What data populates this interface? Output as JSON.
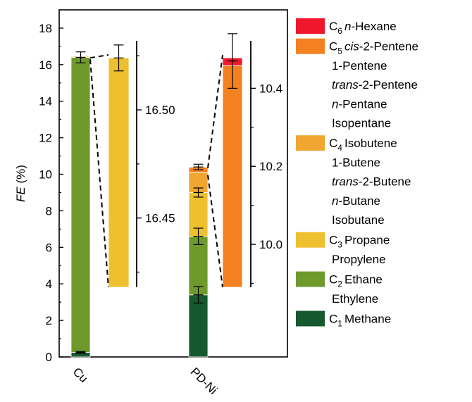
{
  "chart_data": {
    "type": "bar",
    "stacked": true,
    "ylabel_italic": "FE",
    "ylabel_rest": " (%)",
    "ylim": [
      0,
      19
    ],
    "yticks": [
      "0",
      "2",
      "4",
      "6",
      "8",
      "10",
      "12",
      "14",
      "16",
      "18"
    ],
    "categories": [
      "Cu",
      "PD-Ni"
    ],
    "series": [
      {
        "name": "C1 Methane",
        "color": "#16592e",
        "values": [
          0.25,
          3.4
        ]
      },
      {
        "name": "C2 Ethane / Ethylene",
        "color": "#6e9a2b",
        "values": [
          16.15,
          3.2
        ]
      },
      {
        "name": "C3 Propane / Propylene",
        "color": "#eec02f",
        "values": [
          0.05,
          2.4
        ]
      },
      {
        "name": "C4 Isobutene / 1-Butene / trans-2-Butene / n-Butane / Isobutane",
        "color": "#f0a630",
        "values": [
          0.0,
          1.1
        ]
      },
      {
        "name": "C5 cis-2-Pentene / 1-Pentene / trans-2-Pentene / n-Pentane / Isopentane",
        "color": "#f48120",
        "values": [
          0.0,
          0.3
        ]
      },
      {
        "name": "C6 n-Hexane",
        "color": "#f0172c",
        "values": [
          0.0,
          0.02
        ]
      }
    ],
    "error_bars": [
      {
        "category": "Cu",
        "center": 0.25,
        "error": 0.05
      },
      {
        "category": "Cu",
        "center": 16.4,
        "error": 0.3
      },
      {
        "category": "PD-Ni",
        "center": 3.4,
        "error": 0.45
      },
      {
        "category": "PD-Ni",
        "center": 6.6,
        "error": 0.45
      },
      {
        "category": "PD-Ni",
        "center": 9.0,
        "error": 0.25
      },
      {
        "category": "PD-Ni",
        "center": 10.4,
        "error": 0.15
      }
    ],
    "zoom_panels": [
      {
        "category": "Cu",
        "range": [
          16.418,
          16.528
        ],
        "ticks": [
          "16.45",
          "16.50"
        ],
        "tick_values": [
          16.45,
          16.5
        ],
        "segments": [
          {
            "color": "#eec02f",
            "from": 16.418,
            "to": 16.524
          }
        ],
        "error_bar": {
          "center": 16.524,
          "error": 0.006
        }
      },
      {
        "category": "PD-Ni",
        "range": [
          9.89,
          10.5
        ],
        "ticks": [
          "10.0",
          "10.2",
          "10.4"
        ],
        "tick_values": [
          10.0,
          10.2,
          10.4
        ],
        "segments": [
          {
            "color": "#f48120",
            "from": 9.89,
            "to": 10.458
          },
          {
            "color": "#f0172c",
            "from": 10.458,
            "to": 10.478
          }
        ],
        "error_bar": {
          "center": 10.47,
          "error": 0.07
        }
      }
    ]
  },
  "legend": [
    {
      "color": "#f0172c",
      "prefix": "C",
      "sub": "6",
      "lines": [
        {
          "pre": "",
          "it": "n",
          "post": "-Hexane"
        }
      ]
    },
    {
      "color": "#f48120",
      "prefix": "C",
      "sub": "5",
      "lines": [
        {
          "pre": "",
          "it": "cis",
          "post": "-2-Pentene"
        },
        {
          "pre": "1-Pentene",
          "it": "",
          "post": ""
        },
        {
          "pre": "",
          "it": "trans",
          "post": "-2-Pentene"
        },
        {
          "pre": "",
          "it": "n",
          "post": "-Pentane"
        },
        {
          "pre": "Isopentane",
          "it": "",
          "post": ""
        }
      ]
    },
    {
      "color": "#f0a630",
      "prefix": "C",
      "sub": "4",
      "lines": [
        {
          "pre": "Isobutene",
          "it": "",
          "post": ""
        },
        {
          "pre": "1-Butene",
          "it": "",
          "post": ""
        },
        {
          "pre": "",
          "it": "trans",
          "post": "-2-Butene"
        },
        {
          "pre": "",
          "it": "n",
          "post": "-Butane"
        },
        {
          "pre": "Isobutane",
          "it": "",
          "post": ""
        }
      ]
    },
    {
      "color": "#eec02f",
      "prefix": "C",
      "sub": "3",
      "lines": [
        {
          "pre": "Propane",
          "it": "",
          "post": ""
        },
        {
          "pre": "Propylene",
          "it": "",
          "post": ""
        }
      ]
    },
    {
      "color": "#6e9a2b",
      "prefix": "C",
      "sub": "2",
      "lines": [
        {
          "pre": "Ethane",
          "it": "",
          "post": ""
        },
        {
          "pre": "Ethylene",
          "it": "",
          "post": ""
        }
      ]
    },
    {
      "color": "#16592e",
      "prefix": "C",
      "sub": "1",
      "lines": [
        {
          "pre": "Methane",
          "it": "",
          "post": ""
        }
      ]
    }
  ]
}
